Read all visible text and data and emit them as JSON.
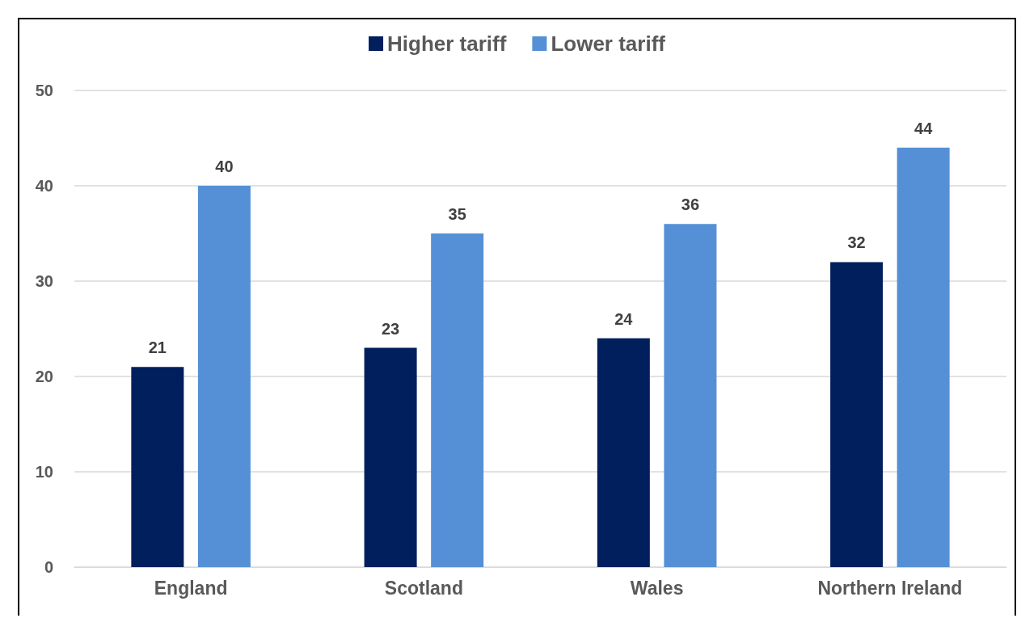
{
  "chart_data": {
    "type": "bar",
    "categories": [
      "England",
      "Scotland",
      "Wales",
      "Northern Ireland"
    ],
    "series": [
      {
        "name": "Higher tariff",
        "color": "#001f5c",
        "values": [
          21,
          23,
          24,
          32
        ]
      },
      {
        "name": "Lower tariff",
        "color": "#5590d6",
        "values": [
          40,
          35,
          36,
          44
        ]
      }
    ],
    "ylim": [
      0,
      50
    ],
    "yticks": [
      0,
      10,
      20,
      30,
      40,
      50
    ],
    "grid": "y",
    "legend": "top",
    "data_labels": true
  }
}
